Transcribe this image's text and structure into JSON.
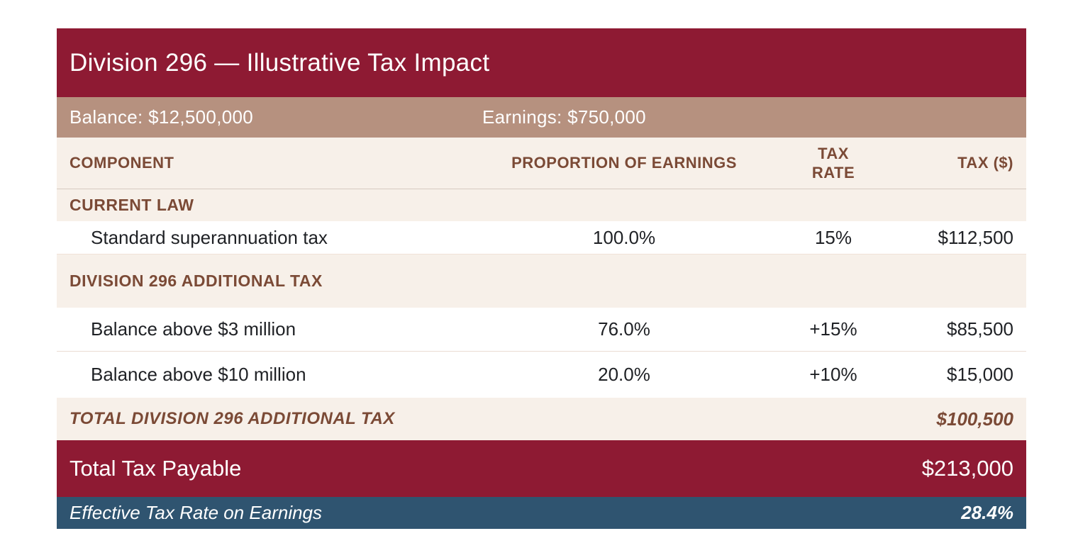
{
  "header": {
    "title": "Division 296 — Illustrative Tax Impact"
  },
  "info_bar": {
    "balance": "Balance: $12,500,000",
    "earnings": "Earnings: $750,000"
  },
  "table": {
    "columns": {
      "component": "COMPONENT",
      "proportion": "PROPORTION OF EARNINGS",
      "tax_rate": "TAX RATE",
      "tax": "TAX ($)"
    },
    "section1": {
      "label": "CURRENT LAW"
    },
    "row1": {
      "component": "Standard superannuation tax",
      "proportion": "100.0%",
      "tax_rate": "15%",
      "tax": "$112,500"
    },
    "section2": {
      "label": "DIVISION 296 ADDITIONAL TAX"
    },
    "row2": {
      "component": "Balance above $3 million",
      "proportion": "76.0%",
      "tax_rate": "+15%",
      "tax": "$85,500"
    },
    "row3": {
      "component": "Balance above $10 million",
      "proportion": "20.0%",
      "tax_rate": "+10%",
      "tax": "$15,000"
    },
    "total_row": {
      "label": "TOTAL DIVISION 296 ADDITIONAL TAX",
      "tax": "$100,500"
    },
    "total_payable": {
      "label": "Total Tax Payable",
      "tax": "$213,000"
    },
    "effective_rate": {
      "label": "Effective Tax Rate on Earnings",
      "value": "28.4%"
    }
  },
  "colors": {
    "maroon": "#8E1A33",
    "tan": "#B6917F",
    "cream": "#F7F0E9",
    "brown_text": "#7B4A36",
    "steel_blue": "#2F5470",
    "dark_text": "#1F2125"
  },
  "chart_data": {
    "type": "table",
    "title": "Division 296 — Illustrative Tax Impact",
    "balance_dollars": 12500000,
    "earnings_dollars": 750000,
    "columns": [
      "COMPONENT",
      "PROPORTION OF EARNINGS",
      "TAX RATE",
      "TAX ($)"
    ],
    "sections": [
      {
        "section": "CURRENT LAW",
        "rows": [
          {
            "component": "Standard superannuation tax",
            "proportion_of_earnings_pct": 100.0,
            "tax_rate": "15%",
            "tax_dollars": 112500
          }
        ]
      },
      {
        "section": "DIVISION 296 ADDITIONAL TAX",
        "rows": [
          {
            "component": "Balance above $3 million",
            "proportion_of_earnings_pct": 76.0,
            "tax_rate": "+15%",
            "tax_dollars": 85500
          },
          {
            "component": "Balance above $10 million",
            "proportion_of_earnings_pct": 20.0,
            "tax_rate": "+10%",
            "tax_dollars": 15000
          }
        ],
        "total_label": "TOTAL DIVISION 296 ADDITIONAL TAX",
        "total_tax_dollars": 100500
      }
    ],
    "total_tax_payable_dollars": 213000,
    "effective_tax_rate_on_earnings_pct": 28.4
  }
}
